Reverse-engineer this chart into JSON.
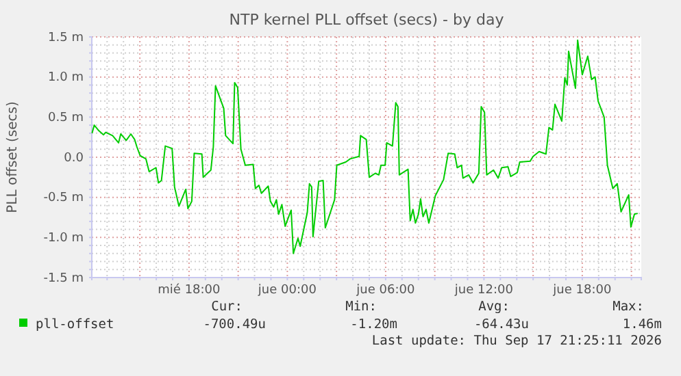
{
  "chart_data": {
    "type": "line",
    "title": "NTP kernel PLL offset (secs) - by day",
    "ylabel": "PLL offset (secs)",
    "xlim": [
      "2026-09-16T12:04",
      "2026-09-17T21:36"
    ],
    "ylim": [
      -1.5,
      1.5
    ],
    "xticks": [
      {
        "value": "2026-09-16T13:00",
        "label": null
      },
      {
        "value": "2026-09-16T14:00",
        "label": null
      },
      {
        "value": "2026-09-16T15:00",
        "label": null
      },
      {
        "value": "2026-09-16T16:00",
        "label": null
      },
      {
        "value": "2026-09-16T17:00",
        "label": null
      },
      {
        "value": "2026-09-16T18:00",
        "label": "mié 18:00"
      },
      {
        "value": "2026-09-16T19:00",
        "label": null
      },
      {
        "value": "2026-09-16T20:00",
        "label": null
      },
      {
        "value": "2026-09-16T21:00",
        "label": null
      },
      {
        "value": "2026-09-16T22:00",
        "label": null
      },
      {
        "value": "2026-09-16T23:00",
        "label": null
      },
      {
        "value": "2026-09-17T00:00",
        "label": "jue 00:00"
      },
      {
        "value": "2026-09-17T01:00",
        "label": null
      },
      {
        "value": "2026-09-17T02:00",
        "label": null
      },
      {
        "value": "2026-09-17T03:00",
        "label": null
      },
      {
        "value": "2026-09-17T04:00",
        "label": null
      },
      {
        "value": "2026-09-17T05:00",
        "label": null
      },
      {
        "value": "2026-09-17T06:00",
        "label": "jue 06:00"
      },
      {
        "value": "2026-09-17T07:00",
        "label": null
      },
      {
        "value": "2026-09-17T08:00",
        "label": null
      },
      {
        "value": "2026-09-17T09:00",
        "label": null
      },
      {
        "value": "2026-09-17T10:00",
        "label": null
      },
      {
        "value": "2026-09-17T11:00",
        "label": null
      },
      {
        "value": "2026-09-17T12:00",
        "label": "jue 12:00"
      },
      {
        "value": "2026-09-17T13:00",
        "label": null
      },
      {
        "value": "2026-09-17T14:00",
        "label": null
      },
      {
        "value": "2026-09-17T15:00",
        "label": null
      },
      {
        "value": "2026-09-17T16:00",
        "label": null
      },
      {
        "value": "2026-09-17T17:00",
        "label": null
      },
      {
        "value": "2026-09-17T18:00",
        "label": "jue 18:00"
      },
      {
        "value": "2026-09-17T19:00",
        "label": null
      },
      {
        "value": "2026-09-17T20:00",
        "label": null
      },
      {
        "value": "2026-09-17T21:00",
        "label": null
      }
    ],
    "yticks": [
      {
        "value": -1.5,
        "label": "-1.5 m"
      },
      {
        "value": -1.4,
        "label": null
      },
      {
        "value": -1.3,
        "label": null
      },
      {
        "value": -1.2,
        "label": null
      },
      {
        "value": -1.1,
        "label": null
      },
      {
        "value": -1.0,
        "label": "-1.0 m"
      },
      {
        "value": -0.9,
        "label": null
      },
      {
        "value": -0.8,
        "label": null
      },
      {
        "value": -0.7,
        "label": null
      },
      {
        "value": -0.6,
        "label": null
      },
      {
        "value": -0.5,
        "label": "-0.5 m"
      },
      {
        "value": -0.4,
        "label": null
      },
      {
        "value": -0.3,
        "label": null
      },
      {
        "value": -0.2,
        "label": null
      },
      {
        "value": -0.1,
        "label": null
      },
      {
        "value": 0,
        "label": "0.0"
      },
      {
        "value": 0.1,
        "label": null
      },
      {
        "value": 0.2,
        "label": null
      },
      {
        "value": 0.3,
        "label": null
      },
      {
        "value": 0.4,
        "label": null
      },
      {
        "value": 0.5,
        "label": "0.5 m"
      },
      {
        "value": 0.6,
        "label": null
      },
      {
        "value": 0.7,
        "label": null
      },
      {
        "value": 0.8,
        "label": null
      },
      {
        "value": 0.9,
        "label": null
      },
      {
        "value": 1.0,
        "label": "1.0 m"
      },
      {
        "value": 1.1,
        "label": null
      },
      {
        "value": 1.2,
        "label": null
      },
      {
        "value": 1.3,
        "label": null
      },
      {
        "value": 1.4,
        "label": null
      },
      {
        "value": 1.5,
        "label": "1.5 m"
      }
    ],
    "grid": true,
    "legend": "bottom",
    "series": [
      {
        "name": "pll-offset",
        "color": "#00cc00",
        "x": [
          "2026-09-16T12:05",
          "2026-09-16T12:13",
          "2026-09-16T12:30",
          "2026-09-16T12:47",
          "2026-09-16T12:55",
          "2026-09-16T13:20",
          "2026-09-16T13:42",
          "2026-09-16T13:50",
          "2026-09-16T14:10",
          "2026-09-16T14:27",
          "2026-09-16T14:41",
          "2026-09-16T14:49",
          "2026-09-16T15:01",
          "2026-09-16T15:22",
          "2026-09-16T15:34",
          "2026-09-16T15:59",
          "2026-09-16T16:08",
          "2026-09-16T16:19",
          "2026-09-16T16:33",
          "2026-09-16T16:58",
          "2026-09-16T17:07",
          "2026-09-16T17:23",
          "2026-09-16T17:48",
          "2026-09-16T17:56",
          "2026-09-16T18:10",
          "2026-09-16T18:19",
          "2026-09-16T18:47",
          "2026-09-16T18:52",
          "2026-09-16T19:20",
          "2026-09-16T19:29",
          "2026-09-16T19:37",
          "2026-09-16T20:07",
          "2026-09-16T20:14",
          "2026-09-16T20:41",
          "2026-09-16T20:47",
          "2026-09-16T20:58",
          "2026-09-16T21:10",
          "2026-09-16T21:26",
          "2026-09-16T21:55",
          "2026-09-16T22:03",
          "2026-09-16T22:16",
          "2026-09-16T22:25",
          "2026-09-16T22:50",
          "2026-09-16T22:58",
          "2026-09-16T23:10",
          "2026-09-16T23:20",
          "2026-09-16T23:28",
          "2026-09-16T23:40",
          "2026-09-16T23:52",
          "2026-09-17T00:14",
          "2026-09-17T00:22",
          "2026-09-17T00:39",
          "2026-09-17T00:47",
          "2026-09-17T01:13",
          "2026-09-17T01:21",
          "2026-09-17T01:29",
          "2026-09-17T01:34",
          "2026-09-17T01:55",
          "2026-09-17T02:11",
          "2026-09-17T02:19",
          "2026-09-17T02:53",
          "2026-09-17T03:01",
          "2026-09-17T03:34",
          "2026-09-17T03:50",
          "2026-09-17T04:23",
          "2026-09-17T04:28",
          "2026-09-17T04:49",
          "2026-09-17T05:00",
          "2026-09-17T05:22",
          "2026-09-17T05:35",
          "2026-09-17T05:43",
          "2026-09-17T05:58",
          "2026-09-17T06:04",
          "2026-09-17T06:25",
          "2026-09-17T06:37",
          "2026-09-17T06:45",
          "2026-09-17T06:50",
          "2026-09-17T07:22",
          "2026-09-17T07:30",
          "2026-09-17T07:40",
          "2026-09-17T07:49",
          "2026-09-17T08:00",
          "2026-09-17T08:08",
          "2026-09-17T08:17",
          "2026-09-17T08:28",
          "2026-09-17T08:38",
          "2026-09-17T09:02",
          "2026-09-17T09:32",
          "2026-09-17T09:49",
          "2026-09-17T10:13",
          "2026-09-17T10:22",
          "2026-09-17T10:38",
          "2026-09-17T10:43",
          "2026-09-17T11:04",
          "2026-09-17T11:20",
          "2026-09-17T11:41",
          "2026-09-17T11:50",
          "2026-09-17T12:02",
          "2026-09-17T12:10",
          "2026-09-17T12:35",
          "2026-09-17T12:52",
          "2026-09-17T13:05",
          "2026-09-17T13:28",
          "2026-09-17T13:38",
          "2026-09-17T14:02",
          "2026-09-17T14:11",
          "2026-09-17T14:49",
          "2026-09-17T15:00",
          "2026-09-17T15:22",
          "2026-09-17T15:47",
          "2026-09-17T15:58",
          "2026-09-17T16:11",
          "2026-09-17T16:20",
          "2026-09-17T16:45",
          "2026-09-17T16:56",
          "2026-09-17T17:05",
          "2026-09-17T17:10",
          "2026-09-17T17:35",
          "2026-09-17T17:43",
          "2026-09-17T18:00",
          "2026-09-17T18:20",
          "2026-09-17T18:34",
          "2026-09-17T18:47",
          "2026-09-17T18:58",
          "2026-09-17T19:20",
          "2026-09-17T19:32",
          "2026-09-17T19:52",
          "2026-09-17T20:08",
          "2026-09-17T20:22",
          "2026-09-17T20:50",
          "2026-09-17T20:58",
          "2026-09-17T21:11",
          "2026-09-17T21:23"
        ],
        "values": [
          0.3,
          0.4,
          0.33,
          0.28,
          0.31,
          0.27,
          0.18,
          0.29,
          0.21,
          0.29,
          0.22,
          0.13,
          0.02,
          -0.02,
          -0.18,
          -0.13,
          -0.32,
          -0.29,
          0.14,
          0.11,
          -0.37,
          -0.61,
          -0.4,
          -0.64,
          -0.55,
          0.05,
          0.04,
          -0.25,
          -0.16,
          0.13,
          0.89,
          0.61,
          0.27,
          0.17,
          0.93,
          0.87,
          0.1,
          -0.1,
          -0.09,
          -0.39,
          -0.35,
          -0.45,
          -0.36,
          -0.55,
          -0.62,
          -0.53,
          -0.71,
          -0.59,
          -0.86,
          -0.66,
          -1.2,
          -1.01,
          -1.11,
          -0.69,
          -0.33,
          -0.37,
          -0.99,
          -0.3,
          -0.29,
          -0.88,
          -0.53,
          -0.1,
          -0.06,
          -0.02,
          0.01,
          0.27,
          0.22,
          -0.25,
          -0.2,
          -0.22,
          -0.1,
          -0.1,
          0.18,
          0.14,
          0.68,
          0.63,
          -0.22,
          -0.15,
          -0.79,
          -0.65,
          -0.82,
          -0.71,
          -0.52,
          -0.74,
          -0.65,
          -0.82,
          -0.48,
          -0.28,
          0.05,
          0.04,
          -0.13,
          -0.1,
          -0.26,
          -0.22,
          -0.32,
          -0.2,
          0.63,
          0.56,
          -0.22,
          -0.16,
          -0.26,
          -0.13,
          -0.12,
          -0.24,
          -0.19,
          -0.06,
          -0.05,
          0.01,
          0.07,
          0.04,
          0.37,
          0.34,
          0.66,
          0.45,
          0.99,
          0.9,
          1.32,
          0.86,
          1.46,
          1.03,
          1.26,
          0.97,
          1.0,
          0.7,
          0.5,
          -0.1,
          -0.39,
          -0.33,
          -0.68,
          -0.47,
          -0.87,
          -0.71,
          -0.7
        ]
      }
    ],
    "annotations": [
      "Cur:",
      "Min:",
      "Avg:",
      "Max:",
      "-700.49u",
      "-1.20m",
      "-64.43u",
      "1.46m",
      "Last update: Thu Sep 17 21:25:11 2026"
    ]
  }
}
